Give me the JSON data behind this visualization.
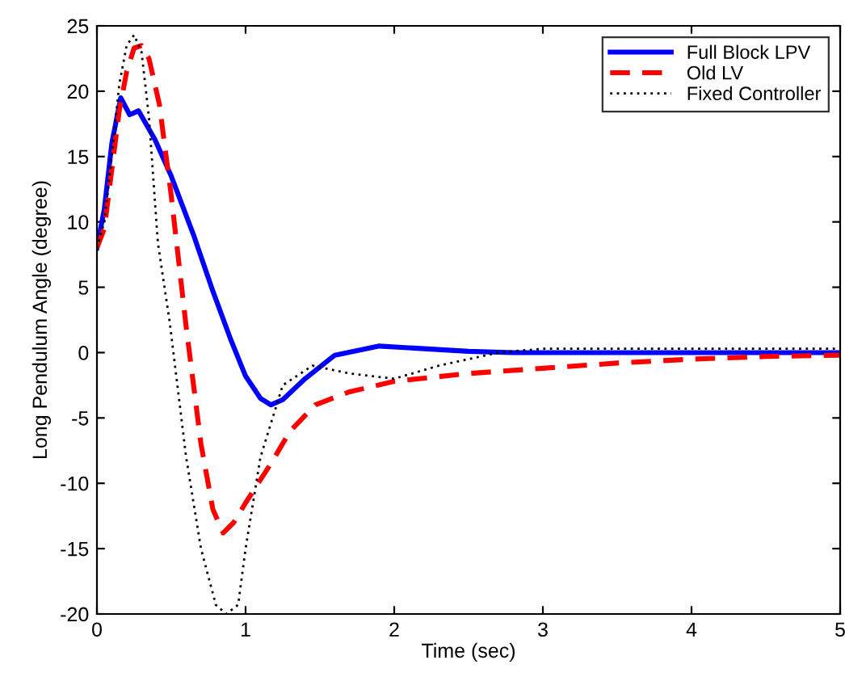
{
  "chart_data": {
    "type": "line",
    "xlabel": "Time (sec)",
    "ylabel": "Long Pendulum Angle (degree)",
    "xlim": [
      0,
      5
    ],
    "ylim": [
      -20,
      25
    ],
    "xticks": [
      0,
      1,
      2,
      3,
      4,
      5
    ],
    "yticks": [
      -20,
      -15,
      -10,
      -5,
      0,
      5,
      10,
      15,
      20,
      25
    ],
    "grid": false,
    "legend": "top right",
    "series": [
      {
        "name": "Full Block LPV",
        "color": "#0000ff",
        "line_style": "solid",
        "x": [
          0,
          0.05,
          0.1,
          0.16,
          0.22,
          0.28,
          0.33,
          0.39,
          0.5,
          0.65,
          0.78,
          0.9,
          1.0,
          1.1,
          1.17,
          1.25,
          1.4,
          1.6,
          1.9,
          2.2,
          2.5,
          2.8,
          3.5,
          5
        ],
        "values": [
          8,
          11,
          16,
          19.5,
          18.2,
          18.5,
          17.5,
          16.3,
          13.5,
          9,
          4.7,
          1,
          -1.8,
          -3.5,
          -4,
          -3.6,
          -2,
          -0.2,
          0.5,
          0.3,
          0.1,
          0,
          0,
          0
        ]
      },
      {
        "name": "Old LV",
        "color": "#ff0000",
        "line_style": "dashed",
        "x": [
          0,
          0.05,
          0.1,
          0.15,
          0.2,
          0.25,
          0.3,
          0.35,
          0.42,
          0.5,
          0.6,
          0.7,
          0.78,
          0.85,
          0.92,
          1.0,
          1.17,
          1.3,
          1.47,
          1.7,
          2.0,
          2.5,
          3.0,
          3.5,
          4.0,
          4.5,
          5
        ],
        "values": [
          8,
          9.5,
          14,
          18.5,
          21.5,
          23.3,
          23.5,
          22.5,
          19,
          12,
          2,
          -7,
          -12,
          -13.8,
          -13,
          -11.5,
          -8.5,
          -6,
          -4,
          -3,
          -2.2,
          -1.6,
          -1.2,
          -0.8,
          -0.5,
          -0.3,
          -0.2
        ]
      },
      {
        "name": "Fixed Controller",
        "color": "#000000",
        "line_style": "dotted",
        "x": [
          0,
          0.05,
          0.1,
          0.15,
          0.2,
          0.25,
          0.3,
          0.35,
          0.41,
          0.49,
          0.6,
          0.7,
          0.8,
          0.87,
          0.95,
          1.0,
          1.1,
          1.25,
          1.45,
          1.7,
          2.0,
          2.3,
          2.7,
          3.0,
          4.0,
          5
        ],
        "values": [
          8,
          10,
          15,
          20.5,
          23.5,
          24.3,
          23,
          18,
          8.4,
          2.3,
          -8,
          -15,
          -19.3,
          -20,
          -19.3,
          -15,
          -8,
          -2.5,
          -1,
          -1.6,
          -2,
          -1,
          0,
          0.3,
          0.3,
          0.3
        ]
      }
    ]
  }
}
